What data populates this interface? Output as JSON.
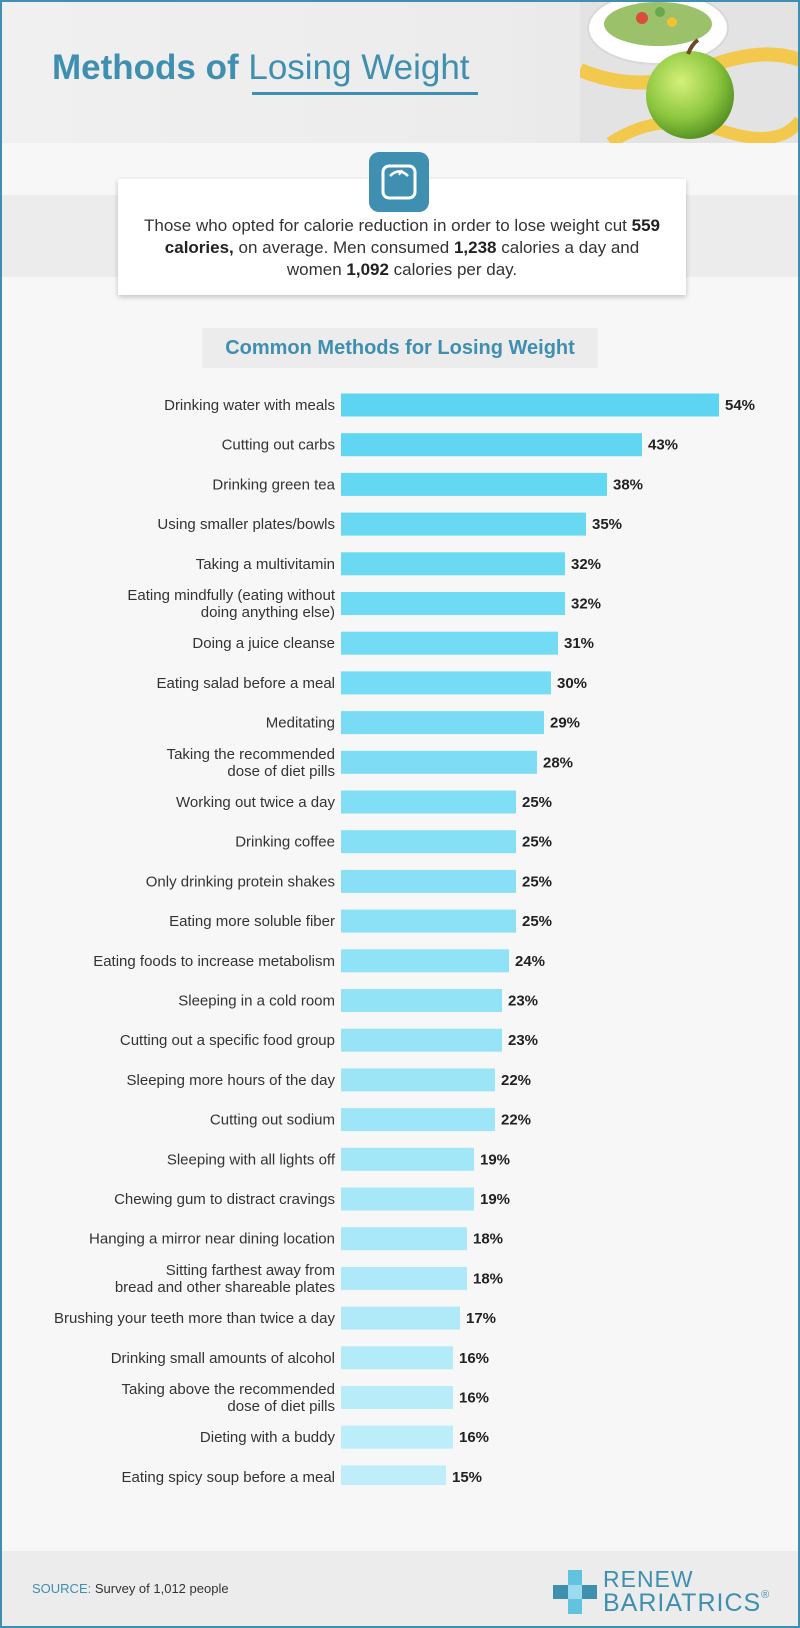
{
  "header": {
    "title_part1": "Methods of",
    "title_part2": "Losing Weight"
  },
  "stat_card": {
    "text_1": "Those who opted for calorie reduction in order to lose weight cut ",
    "bold_1": "559 calories,",
    "text_2": " on average. Men consumed ",
    "bold_2": "1,238",
    "text_3": " calories a day and women ",
    "bold_3": "1,092",
    "text_4": " calories per day."
  },
  "icons": {
    "badge": "scale-icon",
    "decor": "apple-salad-image",
    "logo": "plus-cross-icon"
  },
  "colors": {
    "accent": "#3f8fb0",
    "bar_start": "#5dd5f2",
    "bar_end": "#bfeefa"
  },
  "chart_data": {
    "type": "bar",
    "orientation": "horizontal",
    "title": "Common Methods for Losing Weight",
    "value_suffix": "%",
    "xlim": [
      0,
      54
    ],
    "categories": [
      [
        "Drinking water with meals"
      ],
      [
        "Cutting out carbs"
      ],
      [
        "Drinking green tea"
      ],
      [
        "Using smaller plates/bowls"
      ],
      [
        "Taking a multivitamin"
      ],
      [
        "Eating mindfully (eating without",
        "doing anything else)"
      ],
      [
        "Doing a juice cleanse"
      ],
      [
        "Eating salad before a meal"
      ],
      [
        "Meditating"
      ],
      [
        "Taking the recommended",
        "dose of diet pills"
      ],
      [
        "Working out twice a day"
      ],
      [
        "Drinking coffee"
      ],
      [
        "Only drinking protein shakes"
      ],
      [
        "Eating more soluble fiber"
      ],
      [
        "Eating foods to increase metabolism"
      ],
      [
        "Sleeping in a cold room"
      ],
      [
        "Cutting out a specific food group"
      ],
      [
        "Sleeping more hours of the day"
      ],
      [
        "Cutting out sodium"
      ],
      [
        "Sleeping with all lights off"
      ],
      [
        "Chewing gum to distract cravings"
      ],
      [
        "Hanging a mirror near dining location"
      ],
      [
        "Sitting farthest away from",
        "bread and other shareable plates"
      ],
      [
        "Brushing your teeth more than twice a day"
      ],
      [
        "Drinking small amounts of alcohol"
      ],
      [
        "Taking above the recommended",
        "dose of diet pills"
      ],
      [
        "Dieting with a buddy"
      ],
      [
        "Eating spicy soup before a meal"
      ]
    ],
    "values": [
      54,
      43,
      38,
      35,
      32,
      32,
      31,
      30,
      29,
      28,
      25,
      25,
      25,
      25,
      24,
      23,
      23,
      22,
      22,
      19,
      19,
      18,
      18,
      17,
      16,
      16,
      16,
      15
    ]
  },
  "footer": {
    "source_label": "SOURCE:",
    "source_text": "Survey of 1,012 people",
    "logo_line1": "RENEW",
    "logo_line2": "BARIATRICS",
    "logo_reg": "®"
  }
}
